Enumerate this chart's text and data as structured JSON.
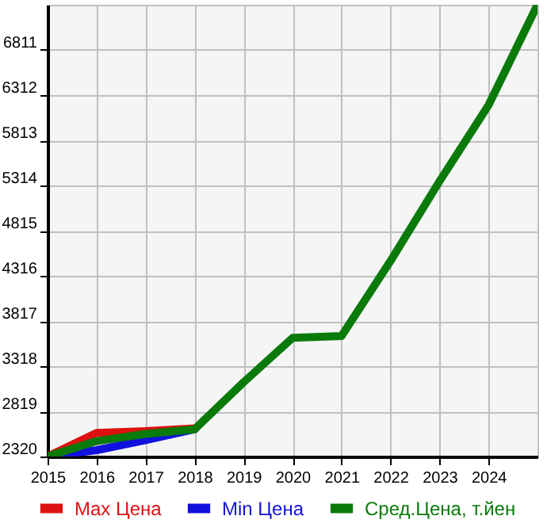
{
  "chart_data": {
    "type": "line",
    "x": [
      2015,
      2016,
      2017,
      2018,
      2019,
      2020,
      2021,
      2022,
      2023,
      2024,
      2025
    ],
    "series": [
      {
        "name": "Max Цена",
        "color": "#dd1111",
        "values": [
          2320,
          2580,
          2600,
          2630,
          null,
          null,
          null,
          null,
          null,
          null,
          null
        ]
      },
      {
        "name": "Min Цена",
        "color": "#1111dd",
        "values": [
          2320,
          2390,
          2500,
          2620,
          null,
          null,
          null,
          null,
          null,
          null,
          null
        ]
      },
      {
        "name": "Сред.Цена, т.йен",
        "color": "#0a7a0a",
        "values": [
          2320,
          2490,
          2570,
          2620,
          3140,
          3630,
          3650,
          4480,
          5360,
          6200,
          7310
        ]
      }
    ],
    "xlim": [
      2015,
      2025
    ],
    "xticks": [
      2015,
      2016,
      2017,
      2018,
      2019,
      2020,
      2021,
      2022,
      2023,
      2024
    ],
    "ylim": [
      2320,
      7310
    ],
    "yticks": [
      2320,
      2819,
      3318,
      3817,
      4316,
      4815,
      5314,
      5813,
      6312,
      6811
    ],
    "grid": true,
    "legend": "bottom",
    "marker": "none",
    "line_style": "solid"
  }
}
